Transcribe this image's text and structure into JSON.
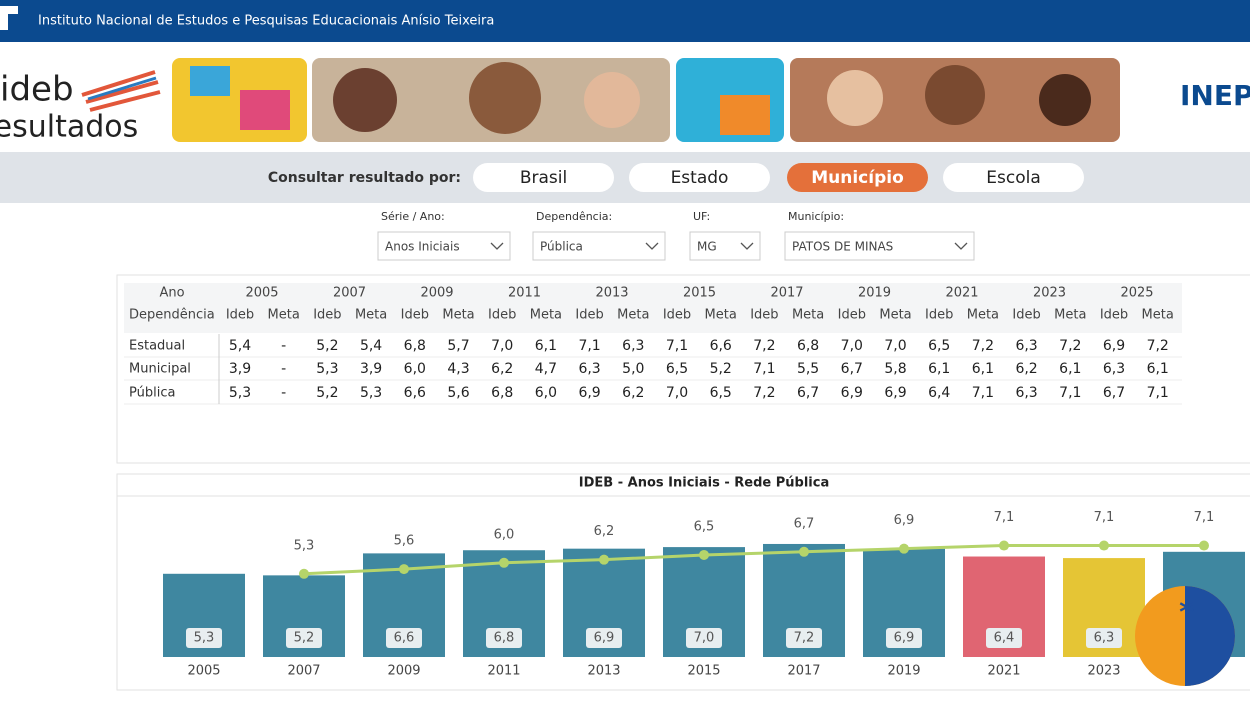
{
  "header": {
    "title": "Instituto Nacional de Estudos e Pesquisas Educacionais Anísio Teixeira"
  },
  "banner": {
    "logo_top": "ideb",
    "logo_bottom": "resultados",
    "brand": "INEP"
  },
  "nav": {
    "label": "Consultar resultado por:",
    "buttons": [
      "Brasil",
      "Estado",
      "Município",
      "Escola"
    ],
    "active": 2
  },
  "filters": [
    {
      "label": "Série / Ano:",
      "value": "Anos Iniciais"
    },
    {
      "label": "Dependência:",
      "value": "Pública"
    },
    {
      "label": "UF:",
      "value": "MG"
    },
    {
      "label": "Município:",
      "value": "PATOS DE MINAS"
    }
  ],
  "table": {
    "top": [
      "Ano",
      "2005",
      "2007",
      "2009",
      "2011",
      "2013",
      "2015",
      "2017",
      "2019",
      "2021",
      "2023",
      "2025"
    ],
    "sub": [
      "Dependência",
      "Ideb",
      "Meta",
      "Ideb",
      "Meta",
      "Ideb",
      "Meta",
      "Ideb",
      "Meta",
      "Ideb",
      "Meta",
      "Ideb",
      "Meta",
      "Ideb",
      "Meta",
      "Ideb",
      "Meta",
      "Ideb",
      "Meta",
      "Ideb",
      "Meta",
      "Ideb",
      "Meta"
    ],
    "rows": [
      [
        "Estadual",
        "5,4",
        "-",
        "5,2",
        "5,4",
        "6,8",
        "5,7",
        "7,0",
        "6,1",
        "7,1",
        "6,3",
        "7,1",
        "6,6",
        "7,2",
        "6,8",
        "7,0",
        "7,0",
        "6,5",
        "7,2",
        "6,3",
        "7,2",
        "6,9",
        "7,2"
      ],
      [
        "Municipal",
        "3,9",
        "-",
        "5,3",
        "3,9",
        "6,0",
        "4,3",
        "6,2",
        "4,7",
        "6,3",
        "5,0",
        "6,5",
        "5,2",
        "7,1",
        "5,5",
        "6,7",
        "5,8",
        "6,1",
        "6,1",
        "6,2",
        "6,1",
        "6,3",
        "6,1"
      ],
      [
        "Pública",
        "5,3",
        "-",
        "5,2",
        "5,3",
        "6,6",
        "5,6",
        "6,8",
        "6,0",
        "6,9",
        "6,2",
        "7,0",
        "6,5",
        "7,2",
        "6,7",
        "6,9",
        "6,9",
        "6,4",
        "7,1",
        "6,3",
        "7,1",
        "6,7",
        "7,1"
      ]
    ]
  },
  "chart_data": {
    "type": "bar",
    "title": "IDEB - Anos Iniciais - Rede Pública",
    "categories": [
      "2005",
      "2007",
      "2009",
      "2011",
      "2013",
      "2015",
      "2017",
      "2019",
      "2021",
      "2023",
      null
    ],
    "ylim": [
      0,
      10
    ],
    "series": [
      {
        "type": "bar",
        "values": [
          5.3,
          5.2,
          6.6,
          6.8,
          6.9,
          7.0,
          7.2,
          6.9,
          6.4,
          6.3,
          6.7
        ],
        "value_labels": [
          "5,3",
          "5,2",
          "6,6",
          "6,8",
          "6,9",
          "7,0",
          "7,2",
          "6,9",
          "6,4",
          "6,3",
          null
        ],
        "colors": [
          "#3f87a0",
          "#3f87a0",
          "#3f87a0",
          "#3f87a0",
          "#3f87a0",
          "#3f87a0",
          "#3f87a0",
          "#3f87a0",
          "#e06572",
          "#e5c535",
          "#3f87a0"
        ]
      },
      {
        "type": "line",
        "color": "#b5d46a",
        "values": [
          null,
          5.3,
          5.6,
          6.0,
          6.2,
          6.5,
          6.7,
          6.9,
          7.1,
          7.1,
          7.1
        ],
        "value_labels": [
          null,
          "5,3",
          "5,6",
          "6,0",
          "6,2",
          "6,5",
          "6,7",
          "6,9",
          "7,1",
          "7,1",
          "7,1"
        ]
      }
    ]
  }
}
